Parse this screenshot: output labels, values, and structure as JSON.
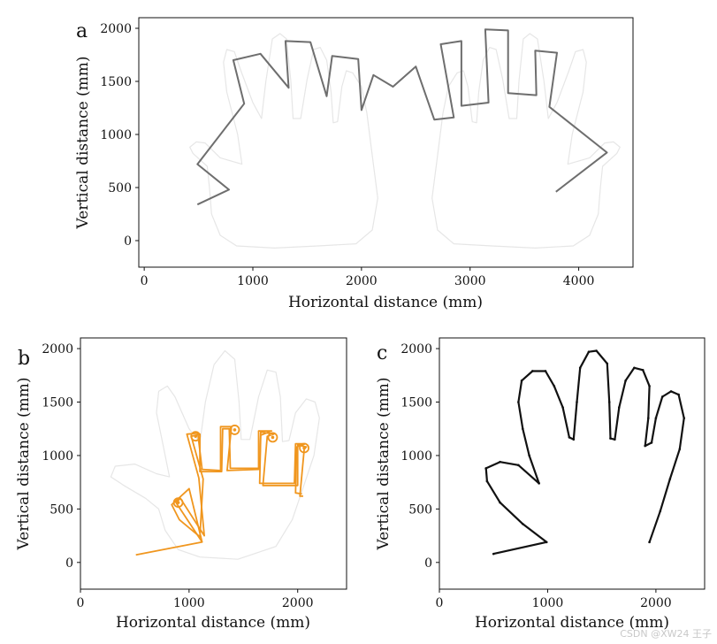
{
  "watermark": "CSDN @XW24 王子",
  "chart_data": [
    {
      "type": "line",
      "panel": "a",
      "xlabel": "Horizontal distance (mm)",
      "ylabel": "Vertical distance (mm)",
      "xlim": [
        -50,
        4500
      ],
      "ylim": [
        -250,
        2100
      ],
      "xticks": [
        0,
        1000,
        2000,
        3000,
        4000
      ],
      "yticks": [
        0,
        500,
        1000,
        1500,
        2000
      ],
      "grid": false,
      "series": [
        {
          "name": "left-hand-outline",
          "color": "#e6e6e6",
          "points": [
            [
              1950,
              -30
            ],
            [
              1600,
              -50
            ],
            [
              1200,
              -70
            ],
            [
              850,
              -50
            ],
            [
              700,
              50
            ],
            [
              620,
              250
            ],
            [
              600,
              500
            ],
            [
              580,
              700
            ],
            [
              450,
              820
            ],
            [
              420,
              880
            ],
            [
              480,
              930
            ],
            [
              560,
              920
            ],
            [
              700,
              780
            ],
            [
              900,
              720
            ],
            [
              860,
              1000
            ],
            [
              760,
              1400
            ],
            [
              730,
              1680
            ],
            [
              760,
              1800
            ],
            [
              830,
              1780
            ],
            [
              890,
              1600
            ],
            [
              1000,
              1300
            ],
            [
              1080,
              1150
            ],
            [
              1120,
              1500
            ],
            [
              1180,
              1900
            ],
            [
              1250,
              1950
            ],
            [
              1310,
              1900
            ],
            [
              1350,
              1500
            ],
            [
              1370,
              1150
            ],
            [
              1440,
              1150
            ],
            [
              1500,
              1520
            ],
            [
              1560,
              1800
            ],
            [
              1620,
              1820
            ],
            [
              1680,
              1700
            ],
            [
              1720,
              1400
            ],
            [
              1740,
              1110
            ],
            [
              1780,
              1120
            ],
            [
              1820,
              1450
            ],
            [
              1860,
              1600
            ],
            [
              1920,
              1580
            ],
            [
              2000,
              1450
            ],
            [
              2050,
              1200
            ],
            [
              2100,
              800
            ],
            [
              2150,
              400
            ],
            [
              2100,
              100
            ],
            [
              1950,
              -30
            ]
          ]
        },
        {
          "name": "right-hand-outline",
          "color": "#e6e6e6",
          "points": [
            [
              2850,
              -30
            ],
            [
              3200,
              -50
            ],
            [
              3600,
              -70
            ],
            [
              3950,
              -50
            ],
            [
              4100,
              50
            ],
            [
              4180,
              250
            ],
            [
              4200,
              500
            ],
            [
              4220,
              700
            ],
            [
              4350,
              820
            ],
            [
              4380,
              880
            ],
            [
              4320,
              930
            ],
            [
              4240,
              920
            ],
            [
              4100,
              780
            ],
            [
              3900,
              720
            ],
            [
              3940,
              1000
            ],
            [
              4040,
              1400
            ],
            [
              4070,
              1680
            ],
            [
              4040,
              1800
            ],
            [
              3970,
              1780
            ],
            [
              3910,
              1600
            ],
            [
              3800,
              1300
            ],
            [
              3720,
              1150
            ],
            [
              3680,
              1500
            ],
            [
              3620,
              1900
            ],
            [
              3550,
              1950
            ],
            [
              3490,
              1900
            ],
            [
              3450,
              1500
            ],
            [
              3430,
              1150
            ],
            [
              3360,
              1150
            ],
            [
              3300,
              1520
            ],
            [
              3240,
              1800
            ],
            [
              3180,
              1820
            ],
            [
              3120,
              1700
            ],
            [
              3080,
              1400
            ],
            [
              3060,
              1110
            ],
            [
              3020,
              1120
            ],
            [
              2980,
              1450
            ],
            [
              2940,
              1600
            ],
            [
              2880,
              1580
            ],
            [
              2800,
              1450
            ],
            [
              2750,
              1200
            ],
            [
              2700,
              800
            ],
            [
              2650,
              400
            ],
            [
              2700,
              100
            ],
            [
              2850,
              -30
            ]
          ]
        },
        {
          "name": "trajectory",
          "color": "#6e6e6e",
          "points": [
            [
              490,
              340
            ],
            [
              780,
              480
            ],
            [
              490,
              720
            ],
            [
              920,
              1290
            ],
            [
              820,
              1700
            ],
            [
              1070,
              1760
            ],
            [
              1330,
              1440
            ],
            [
              1300,
              1880
            ],
            [
              1530,
              1870
            ],
            [
              1680,
              1360
            ],
            [
              1730,
              1740
            ],
            [
              1970,
              1710
            ],
            [
              2000,
              1230
            ],
            [
              2110,
              1560
            ],
            [
              2290,
              1450
            ],
            [
              2500,
              1640
            ],
            [
              2670,
              1140
            ],
            [
              2850,
              1160
            ],
            [
              2730,
              1850
            ],
            [
              2920,
              1880
            ],
            [
              2920,
              1270
            ],
            [
              3170,
              1300
            ],
            [
              3140,
              1990
            ],
            [
              3350,
              1980
            ],
            [
              3350,
              1390
            ],
            [
              3610,
              1370
            ],
            [
              3600,
              1790
            ],
            [
              3800,
              1770
            ],
            [
              3730,
              1260
            ],
            [
              4260,
              830
            ],
            [
              3790,
              460
            ]
          ]
        }
      ]
    },
    {
      "type": "line",
      "panel": "b",
      "xlabel": "Horizontal distance (mm)",
      "ylabel": "Vertical distance (mm)",
      "xlim": [
        0,
        2450
      ],
      "ylim": [
        -250,
        2100
      ],
      "xticks": [
        0,
        1000,
        2000
      ],
      "yticks": [
        0,
        500,
        1000,
        1500,
        2000
      ],
      "grid": false,
      "series": [
        {
          "name": "hand-outline",
          "color": "#e6e6e6",
          "points": [
            [
              1450,
              30
            ],
            [
              1100,
              50
            ],
            [
              900,
              120
            ],
            [
              780,
              300
            ],
            [
              720,
              500
            ],
            [
              600,
              600
            ],
            [
              400,
              720
            ],
            [
              280,
              800
            ],
            [
              320,
              900
            ],
            [
              500,
              920
            ],
            [
              700,
              830
            ],
            [
              820,
              800
            ],
            [
              760,
              1100
            ],
            [
              700,
              1400
            ],
            [
              720,
              1600
            ],
            [
              800,
              1650
            ],
            [
              870,
              1550
            ],
            [
              1000,
              1250
            ],
            [
              1100,
              1120
            ],
            [
              1150,
              1500
            ],
            [
              1230,
              1850
            ],
            [
              1330,
              1980
            ],
            [
              1420,
              1900
            ],
            [
              1460,
              1500
            ],
            [
              1480,
              1150
            ],
            [
              1560,
              1150
            ],
            [
              1640,
              1550
            ],
            [
              1720,
              1800
            ],
            [
              1800,
              1780
            ],
            [
              1840,
              1550
            ],
            [
              1860,
              1130
            ],
            [
              1920,
              1140
            ],
            [
              1980,
              1400
            ],
            [
              2080,
              1530
            ],
            [
              2160,
              1500
            ],
            [
              2200,
              1350
            ],
            [
              2150,
              1000
            ],
            [
              2050,
              700
            ],
            [
              1950,
              400
            ],
            [
              1800,
              150
            ],
            [
              1450,
              30
            ]
          ]
        },
        {
          "name": "trajectory-outer",
          "color": "#f0961e",
          "points": [
            [
              510,
              70
            ],
            [
              1120,
              190
            ],
            [
              1000,
              690
            ],
            [
              840,
              540
            ],
            [
              910,
              400
            ],
            [
              1100,
              240
            ],
            [
              1130,
              780
            ],
            [
              1020,
              1180
            ],
            [
              1100,
              1200
            ],
            [
              1100,
              850
            ],
            [
              1300,
              850
            ],
            [
              1310,
              1250
            ],
            [
              1370,
              1250
            ],
            [
              1380,
              880
            ],
            [
              1650,
              880
            ],
            [
              1660,
              1220
            ],
            [
              1780,
              1200
            ],
            [
              1720,
              1180
            ],
            [
              1680,
              720
            ],
            [
              2000,
              720
            ],
            [
              2000,
              1100
            ],
            [
              2080,
              1080
            ],
            [
              2060,
              1060
            ],
            [
              2020,
              620
            ],
            [
              2050,
              620
            ]
          ]
        },
        {
          "name": "trajectory-inner",
          "color": "#f0961e",
          "points": [
            [
              1120,
              190
            ],
            [
              880,
              560
            ],
            [
              920,
              600
            ],
            [
              1140,
              250
            ],
            [
              1090,
              790
            ],
            [
              980,
              1200
            ],
            [
              1080,
              1210
            ],
            [
              1120,
              870
            ],
            [
              1290,
              860
            ],
            [
              1290,
              1270
            ],
            [
              1390,
              1270
            ],
            [
              1350,
              860
            ],
            [
              1640,
              870
            ],
            [
              1640,
              1230
            ],
            [
              1760,
              1230
            ],
            [
              1660,
              1190
            ],
            [
              1650,
              740
            ],
            [
              1970,
              740
            ],
            [
              1980,
              1110
            ],
            [
              2070,
              1110
            ],
            [
              1990,
              1080
            ],
            [
              1980,
              650
            ],
            [
              2040,
              640
            ]
          ]
        }
      ],
      "markers": [
        [
          900,
          560
        ],
        [
          1060,
          1180
        ],
        [
          1420,
          1240
        ],
        [
          1770,
          1170
        ],
        [
          2060,
          1070
        ]
      ]
    },
    {
      "type": "scatter",
      "panel": "c",
      "xlabel": "Horizontal distance (mm)",
      "ylabel": "Vertical distance (mm)",
      "xlim": [
        0,
        2450
      ],
      "ylim": [
        -250,
        2100
      ],
      "xticks": [
        0,
        1000,
        2000
      ],
      "yticks": [
        0,
        500,
        1000,
        1500,
        2000
      ],
      "grid": false,
      "series": [
        {
          "name": "hand-contour",
          "color": "#111111",
          "points": [
            [
              500,
              80
            ],
            [
              990,
              190
            ],
            [
              770,
              360
            ],
            [
              560,
              560
            ],
            [
              440,
              760
            ],
            [
              430,
              880
            ],
            [
              560,
              940
            ],
            [
              730,
              910
            ],
            [
              920,
              740
            ],
            [
              830,
              1000
            ],
            [
              770,
              1250
            ],
            [
              730,
              1500
            ],
            [
              760,
              1700
            ],
            [
              860,
              1790
            ],
            [
              980,
              1790
            ],
            [
              1060,
              1650
            ],
            [
              1140,
              1450
            ],
            [
              1200,
              1170
            ],
            [
              1240,
              1150
            ],
            [
              1270,
              1500
            ],
            [
              1300,
              1820
            ],
            [
              1380,
              1970
            ],
            [
              1450,
              1980
            ],
            [
              1550,
              1860
            ],
            [
              1570,
              1500
            ],
            [
              1580,
              1160
            ],
            [
              1620,
              1150
            ],
            [
              1660,
              1450
            ],
            [
              1720,
              1700
            ],
            [
              1800,
              1820
            ],
            [
              1880,
              1800
            ],
            [
              1940,
              1650
            ],
            [
              1930,
              1350
            ],
            [
              1900,
              1090
            ],
            [
              1960,
              1120
            ],
            [
              2000,
              1350
            ],
            [
              2060,
              1550
            ],
            [
              2140,
              1600
            ],
            [
              2210,
              1570
            ],
            [
              2260,
              1350
            ],
            [
              2220,
              1060
            ],
            [
              2130,
              780
            ],
            [
              2040,
              480
            ],
            [
              1940,
              190
            ]
          ]
        }
      ]
    }
  ]
}
